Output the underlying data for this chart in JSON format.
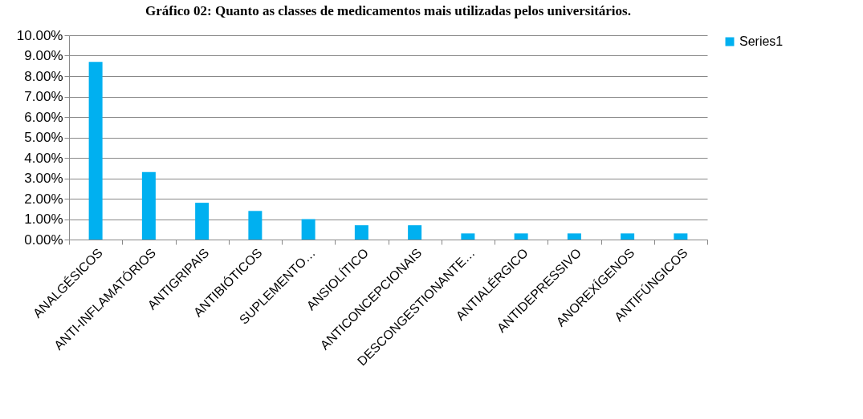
{
  "chart_data": {
    "type": "bar",
    "title": "Gráfico 02: Quanto as classes de medicamentos mais utilizadas pelos universitários.",
    "categories": [
      "ANALGÉSICOS",
      "ANTI-INFLAMATÓRIOS",
      "ANTIGRIPAIS",
      "ANTIBIÓTICOS",
      "SUPLEMENTO…",
      "ANSIOLÍTICO",
      "ANTICONCEPCIONAIS",
      "DESCONGESTIONANTE…",
      "ANTIALÉRGICO",
      "ANTIDEPRESSIVO",
      "ANOREXÍGENOS",
      "ANTIFÚNGICOS"
    ],
    "series": [
      {
        "name": "Series1",
        "color": "#00b0f0",
        "values": [
          8.7,
          3.3,
          1.8,
          1.4,
          1.0,
          0.7,
          0.7,
          0.3,
          0.3,
          0.3,
          0.3,
          0.3
        ]
      }
    ],
    "ylim": [
      0,
      10
    ],
    "yticks": [
      {
        "value": 0,
        "label": "0.00%"
      },
      {
        "value": 1,
        "label": "1.00%"
      },
      {
        "value": 2,
        "label": "2.00%"
      },
      {
        "value": 3,
        "label": "3.00%"
      },
      {
        "value": 4,
        "label": "4.00%"
      },
      {
        "value": 5,
        "label": "5.00%"
      },
      {
        "value": 6,
        "label": "6.00%"
      },
      {
        "value": 7,
        "label": "7.00%"
      },
      {
        "value": 8,
        "label": "8.00%"
      },
      {
        "value": 9,
        "label": "9.00%"
      },
      {
        "value": 10,
        "label": "10.00%"
      }
    ],
    "grid": "y",
    "legend": "right"
  }
}
